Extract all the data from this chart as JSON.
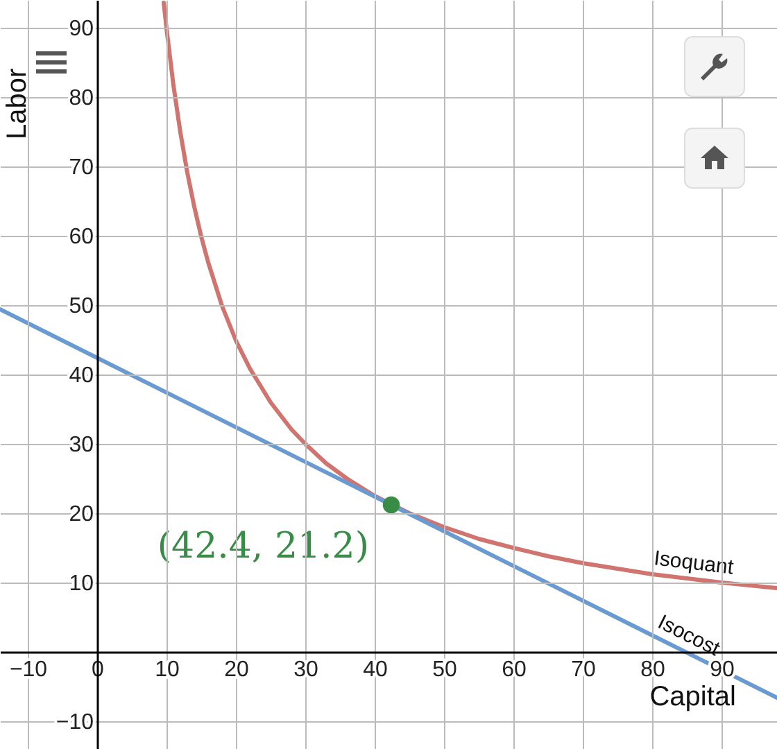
{
  "chart_data": {
    "type": "line",
    "xlabel": "Capital",
    "ylabel": "Labor",
    "xlim": [
      -14,
      98
    ],
    "ylim": [
      -14,
      94
    ],
    "xticks": [
      -10,
      0,
      10,
      20,
      30,
      40,
      50,
      60,
      70,
      80,
      90
    ],
    "yticks": [
      -10,
      10,
      20,
      30,
      40,
      50,
      60,
      70,
      80,
      90
    ],
    "grid": true,
    "series": [
      {
        "name": "Isoquant",
        "color": "#d07470",
        "x": [
          9.6,
          10,
          11,
          12,
          13,
          14,
          15,
          16,
          18,
          20,
          22,
          25,
          28,
          30,
          33,
          36,
          40,
          45,
          50,
          55,
          60,
          65,
          70,
          75,
          80,
          85,
          90,
          95,
          98
        ],
        "values": [
          93.6,
          89.9,
          81.7,
          74.9,
          69.1,
          64.2,
          59.9,
          56.2,
          49.9,
          44.9,
          40.9,
          36.0,
          32.1,
          30.0,
          27.2,
          25.0,
          22.5,
          20.0,
          18.0,
          16.3,
          15.0,
          13.8,
          12.8,
          12.0,
          11.2,
          10.6,
          10.0,
          9.5,
          9.2
        ]
      },
      {
        "name": "Isocost",
        "color": "#6a9bd0",
        "x": [
          -14,
          42.4,
          80,
          98
        ],
        "values": [
          49.4,
          21.2,
          2.4,
          -6.6
        ]
      },
      {
        "type": "scatter",
        "color": "#388c46",
        "x": [
          42.4
        ],
        "values": [
          21.2
        ]
      }
    ],
    "annotations": [
      {
        "text": "(42.4, 21.2)",
        "x": 42.4,
        "y": 21.2
      }
    ]
  }
}
